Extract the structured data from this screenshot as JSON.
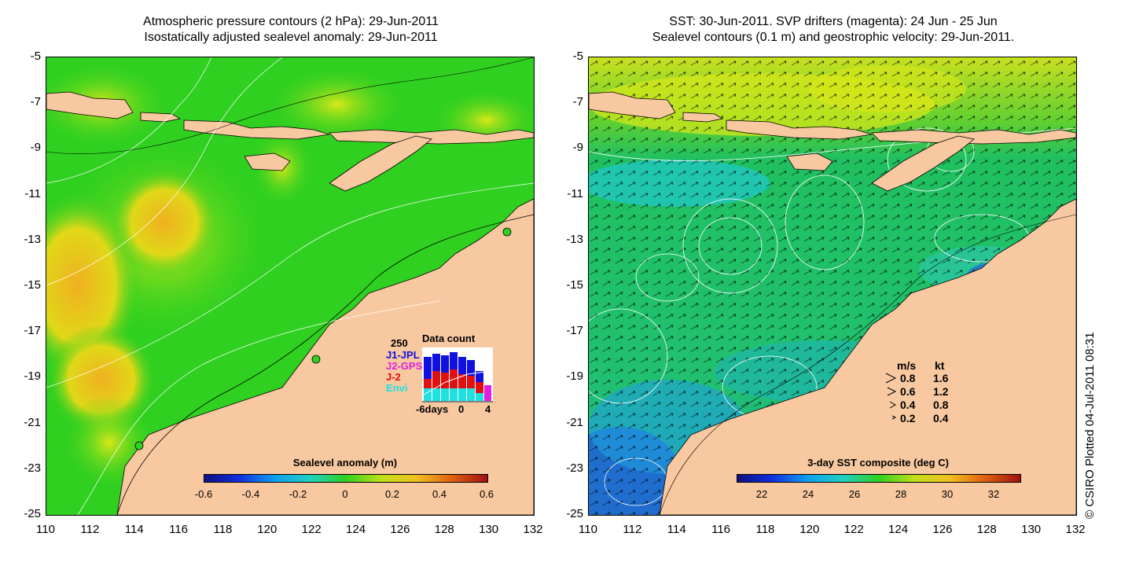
{
  "left_panel": {
    "title_line1": "Atmospheric pressure contours (2 hPa): 29-Jun-2011",
    "title_line2": "Isostatically adjusted sealevel anomaly: 29-Jun-2011",
    "y_ticks": [
      "-5",
      "-7",
      "-9",
      "-11",
      "-13",
      "-15",
      "-17",
      "-19",
      "-21",
      "-23",
      "-25"
    ],
    "x_ticks": [
      "110",
      "112",
      "114",
      "116",
      "118",
      "120",
      "122",
      "124",
      "126",
      "128",
      "130",
      "132"
    ],
    "colorbar": {
      "title": "Sealevel anomaly (m)",
      "labels": [
        "-0.6",
        "-0.4",
        "-0.2",
        "0",
        "0.2",
        "0.4",
        "0.6"
      ]
    },
    "data_count": {
      "title": "Data count",
      "max_label": "250",
      "sources": [
        {
          "name": "J1-JPL",
          "color": "#1010e0"
        },
        {
          "name": "J2-GPS",
          "color": "#e020e0"
        },
        {
          "name": "J-2",
          "color": "#e01010"
        },
        {
          "name": "Envi",
          "color": "#20e0e0"
        }
      ],
      "x_labels": [
        "-6days",
        "0",
        "4"
      ]
    }
  },
  "right_panel": {
    "title_line1": "SST: 30-Jun-2011. SVP drifters (magenta): 24 Jun - 25 Jun",
    "title_line2": "Sealevel contours (0.1 m) and geostrophic velocity: 29-Jun-2011.",
    "y_ticks": [
      "-5",
      "-7",
      "-9",
      "-11",
      "-13",
      "-15",
      "-17",
      "-19",
      "-21",
      "-23",
      "-25"
    ],
    "x_ticks": [
      "110",
      "112",
      "114",
      "116",
      "118",
      "120",
      "122",
      "124",
      "126",
      "128",
      "130",
      "132"
    ],
    "colorbar": {
      "title": "3-day SST composite (deg C)",
      "labels": [
        "22",
        "24",
        "26",
        "28",
        "30",
        "32"
      ]
    },
    "velocity_legend": {
      "header_ms": "m/s",
      "header_kt": "kt",
      "rows": [
        {
          "ms": "0.8",
          "kt": "1.6"
        },
        {
          "ms": "0.6",
          "kt": "1.2"
        },
        {
          "ms": "0.4",
          "kt": "0.8"
        },
        {
          "ms": "0.2",
          "kt": "0.4"
        }
      ]
    }
  },
  "credit": "© CSIRO Plotted 04-Jul-2011 08:31",
  "colors": {
    "land": "#f8c8a0",
    "ocean_green": "#30d020",
    "anomaly_yellow": "#d8e818",
    "anomaly_orange": "#f0b020",
    "sst_green": "#20c060",
    "sst_cyan": "#20c8e0",
    "sst_blue": "#2060d8"
  }
}
